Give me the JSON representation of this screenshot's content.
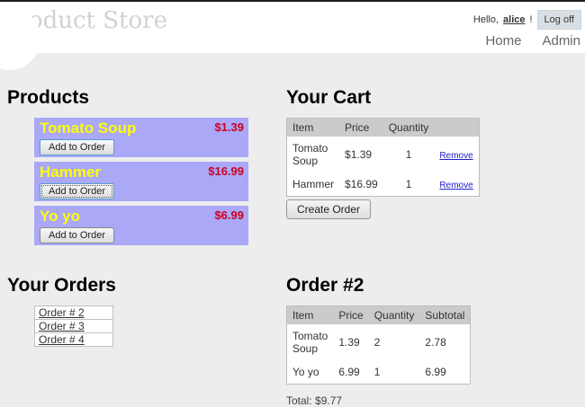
{
  "header": {
    "brand": "Product Store",
    "greeting_prefix": "Hello,",
    "username": "alice",
    "greeting_suffix": "!",
    "logoff_label": "Log off",
    "nav": [
      {
        "label": "Home"
      },
      {
        "label": "Admin"
      }
    ]
  },
  "products": {
    "heading": "Products",
    "add_button_label": "Add to Order",
    "items": [
      {
        "name": "Tomato Soup",
        "price": "$1.39"
      },
      {
        "name": "Hammer",
        "price": "$16.99"
      },
      {
        "name": "Yo yo",
        "price": "$6.99"
      }
    ]
  },
  "cart": {
    "heading": "Your Cart",
    "columns": [
      "Item",
      "Price",
      "Quantity"
    ],
    "remove_label": "Remove",
    "rows": [
      {
        "item": "Tomato Soup",
        "price": "$1.39",
        "quantity": "1"
      },
      {
        "item": "Hammer",
        "price": "$16.99",
        "quantity": "1"
      }
    ],
    "create_order_label": "Create Order"
  },
  "orders": {
    "heading": "Your Orders",
    "links": [
      "Order # 2",
      "Order # 3",
      "Order # 4"
    ]
  },
  "order_detail": {
    "heading": "Order #2",
    "columns": [
      "Item",
      "Price",
      "Quantity",
      "Subtotal"
    ],
    "rows": [
      {
        "item": "Tomato Soup",
        "price": "1.39",
        "quantity": "2",
        "subtotal": "2.78"
      },
      {
        "item": "Yo yo",
        "price": "6.99",
        "quantity": "1",
        "subtotal": "6.99"
      }
    ],
    "total": "Total: $9.77"
  },
  "colors": {
    "top_bar": "#1f1f1f",
    "page_background": "#ededed",
    "product_card_purple": "#aaa8f7",
    "product_name_yellow": "#ffff00",
    "price_red": "#cc0022",
    "link_blue": "#2222cc",
    "table_header_gray": "#cbcbcb",
    "logoff_button_bg": "#d7dee4"
  }
}
